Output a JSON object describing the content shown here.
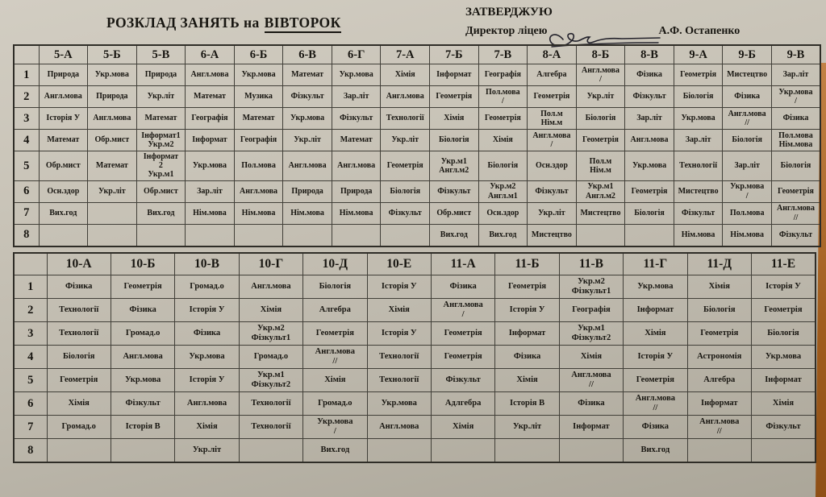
{
  "page": {
    "title": "РОЗКЛАД  ЗАНЯТЬ  на",
    "title_day": "ВІВТОРОК",
    "approve": "ЗАТВЕРДЖУЮ",
    "director_label": "Директор ліцею",
    "director_name": "А.Ф. Остапенко",
    "paper_color": "#c9c4b8",
    "desk_color": "#a05d1e",
    "ink_color": "#181611"
  },
  "table1": {
    "columns": [
      "5-А",
      "5-Б",
      "5-В",
      "6-А",
      "6-Б",
      "6-В",
      "6-Г",
      "7-А",
      "7-Б",
      "7-В",
      "8-А",
      "8-Б",
      "8-В",
      "9-А",
      "9-Б",
      "9-В"
    ],
    "rows": [
      {
        "num": "1",
        "cells": [
          "Природа",
          "Укр.мова",
          "Природа",
          "Англ.мова",
          "Укр.мова",
          "Математ",
          "Укр.мова",
          "Хімія",
          "Інформат",
          "Географія",
          "Алгебра",
          "Англ.мова\n/",
          "Фізика",
          "Геометрія",
          "Мистецтво",
          "Зар.літ"
        ]
      },
      {
        "num": "2",
        "cells": [
          "Англ.мова",
          "Природа",
          "Укр.літ",
          "Математ",
          "Музика",
          "Фізкульт",
          "Зар.літ",
          "Англ.мова",
          "Геометрія",
          "Пол.мова\n/",
          "Геометрія",
          "Укр.літ",
          "Фізкульт",
          "Біологія",
          "Фізика",
          "Укр.мова\n/"
        ]
      },
      {
        "num": "3",
        "cells": [
          "Історія У",
          "Англ.мова",
          "Математ",
          "Географія",
          "Математ",
          "Укр.мова",
          "Фізкульт",
          "Технології",
          "Хімія",
          "Геометрія",
          "Пол.м\nНім.м",
          "Біологія",
          "Зар.літ",
          "Укр.мова",
          "Англ.мова\n//",
          "Фізика"
        ]
      },
      {
        "num": "4",
        "cells": [
          "Математ",
          "Обр.мист",
          "Інформат1\nУкр.м2",
          "Інформат",
          "Географія",
          "Укр.літ",
          "Математ",
          "Укр.літ",
          "Біологія",
          "Хімія",
          "Англ.мова\n/",
          "Геометрія",
          "Англ.мова",
          "Зар.літ",
          "Біологія",
          "Пол.мова\nНім.мова"
        ]
      },
      {
        "num": "5",
        "cells": [
          "Обр.мист",
          "Математ",
          "Інформат\n2\nУкр.м1",
          "Укр.мова",
          "Пол.мова",
          "Англ.мова",
          "Англ.мова",
          "Геометрія",
          "Укр.м1\nАнгл.м2",
          "Біологія",
          "Осн.здор",
          "Пол.м\nНім.м",
          "Укр.мова",
          "Технології",
          "Зар.літ",
          "Біологія"
        ]
      },
      {
        "num": "6",
        "cells": [
          "Осн.здор",
          "Укр.літ",
          "Обр.мист",
          "Зар.літ",
          "Англ.мова",
          "Природа",
          "Природа",
          "Біологія",
          "Фізкульт",
          "Укр.м2\nАнгл.м1",
          "Фізкульт",
          "Укр.м1\nАнгл.м2",
          "Геометрія",
          "Мистецтво",
          "Укр.мова\n/",
          "Геометрія"
        ]
      },
      {
        "num": "7",
        "cells": [
          "Вих.год",
          "",
          "Вих.год",
          "Нім.мова",
          "Нім.мова",
          "Нім.мова",
          "Нім.мова",
          "Фізкульт",
          "Обр.мист",
          "Осн.здор",
          "Укр.літ",
          "Мистецтво",
          "Біологія",
          "Фізкульт",
          "Пол.мова",
          "Англ.мова\n//"
        ]
      },
      {
        "num": "8",
        "cells": [
          "",
          "",
          "",
          "",
          "",
          "",
          "",
          "",
          "Вих.год",
          "Вих.год",
          "Мистецтво",
          "",
          "",
          "Нім.мова",
          "Нім.мова",
          "Фізкульт"
        ]
      }
    ]
  },
  "table2": {
    "columns": [
      "10-А",
      "10-Б",
      "10-В",
      "10-Г",
      "10-Д",
      "10-Е",
      "11-А",
      "11-Б",
      "11-В",
      "11-Г",
      "11-Д",
      "11-Е"
    ],
    "rows": [
      {
        "num": "1",
        "cells": [
          "Фізика",
          "Геометрія",
          "Громад.о",
          "Англ.мова",
          "Біологія",
          "Історія У",
          "Фізика",
          "Геометрія",
          "Укр.м2\nФізкульт1",
          "Укр.мова",
          "Хімія",
          "Історія У"
        ]
      },
      {
        "num": "2",
        "cells": [
          "Технології",
          "Фізика",
          "Історія У",
          "Хімія",
          "Алгебра",
          "Хімія",
          "Англ.мова\n/",
          "Історія У",
          "Географія",
          "Інформат",
          "Біологія",
          "Геометрія"
        ]
      },
      {
        "num": "3",
        "cells": [
          "Технології",
          "Громад.о",
          "Фізика",
          "Укр.м2\nФізкульт1",
          "Геометрія",
          "Історія У",
          "Геометрія",
          "Інформат",
          "Укр.м1\nФізкульт2",
          "Хімія",
          "Геометрія",
          "Біологія"
        ]
      },
      {
        "num": "4",
        "cells": [
          "Біологія",
          "Англ.мова",
          "Укр.мова",
          "Громад.о",
          "Англ.мова\n//",
          "Технології",
          "Геометрія",
          "Фізика",
          "Хімія",
          "Історія У",
          "Астрономія",
          "Укр.мова"
        ]
      },
      {
        "num": "5",
        "cells": [
          "Геометрія",
          "Укр.мова",
          "Історія У",
          "Укр.м1\nФізкульт2",
          "Хімія",
          "Технології",
          "Фізкульт",
          "Хімія",
          "Англ.мова\n//",
          "Геометрія",
          "Алгебра",
          "Інформат"
        ]
      },
      {
        "num": "6",
        "cells": [
          "Хімія",
          "Фізкульт",
          "Англ.мова",
          "Технології",
          "Громад.о",
          "Укр.мова",
          "Адлгебра",
          "Історія В",
          "Фізика",
          "Англ.мова\n//",
          "Інформат",
          "Хімія"
        ]
      },
      {
        "num": "7",
        "cells": [
          "Громад.о",
          "Історія В",
          "Хімія",
          "Технології",
          "Укр.мова\n/",
          "Англ.мова",
          "Хімія",
          "Укр.літ",
          "Інформат",
          "Фізика",
          "Англ.мова\n//",
          "Фізкульт"
        ]
      },
      {
        "num": "8",
        "cells": [
          "",
          "",
          "Укр.літ",
          "",
          "Вих.год",
          "",
          "",
          "",
          "",
          "Вих.год",
          "",
          ""
        ]
      }
    ]
  }
}
